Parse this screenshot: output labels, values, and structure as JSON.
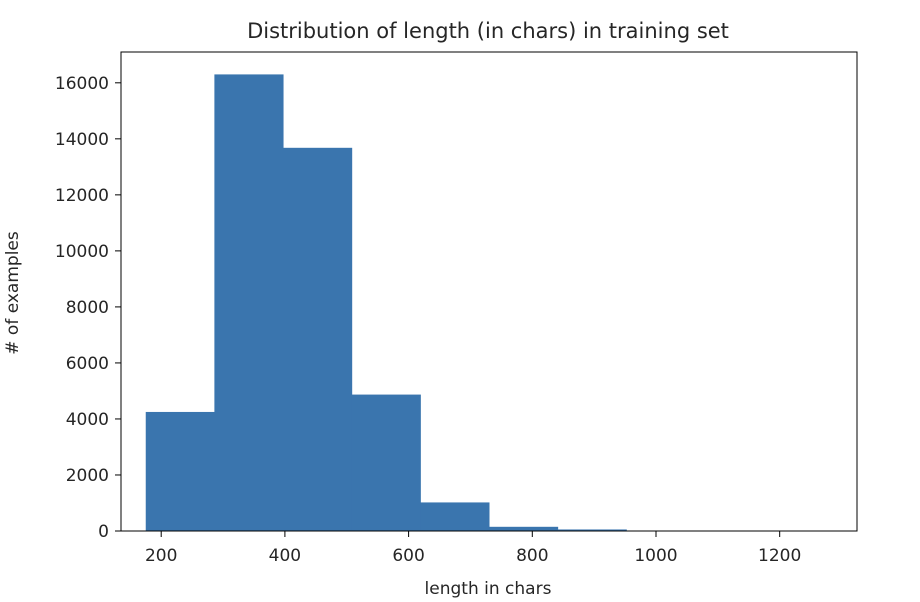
{
  "chart_data": {
    "type": "bar",
    "title": "Distribution of length (in chars) in training set",
    "xlabel": "length in chars",
    "ylabel": "# of examples",
    "bin_edges": [
      175,
      286,
      397,
      508,
      619,
      730,
      841,
      952,
      1063,
      1174,
      1285
    ],
    "values": [
      4250,
      16300,
      13680,
      4870,
      1020,
      150,
      55,
      12,
      5,
      3
    ],
    "xlim": [
      135,
      1325
    ],
    "ylim": [
      0,
      17100
    ],
    "xticks": [
      200,
      400,
      600,
      800,
      1000,
      1200
    ],
    "yticks": [
      0,
      2000,
      4000,
      6000,
      8000,
      10000,
      12000,
      14000,
      16000
    ],
    "bar_color": "#3a75ae",
    "grid": false,
    "legend": "none"
  }
}
